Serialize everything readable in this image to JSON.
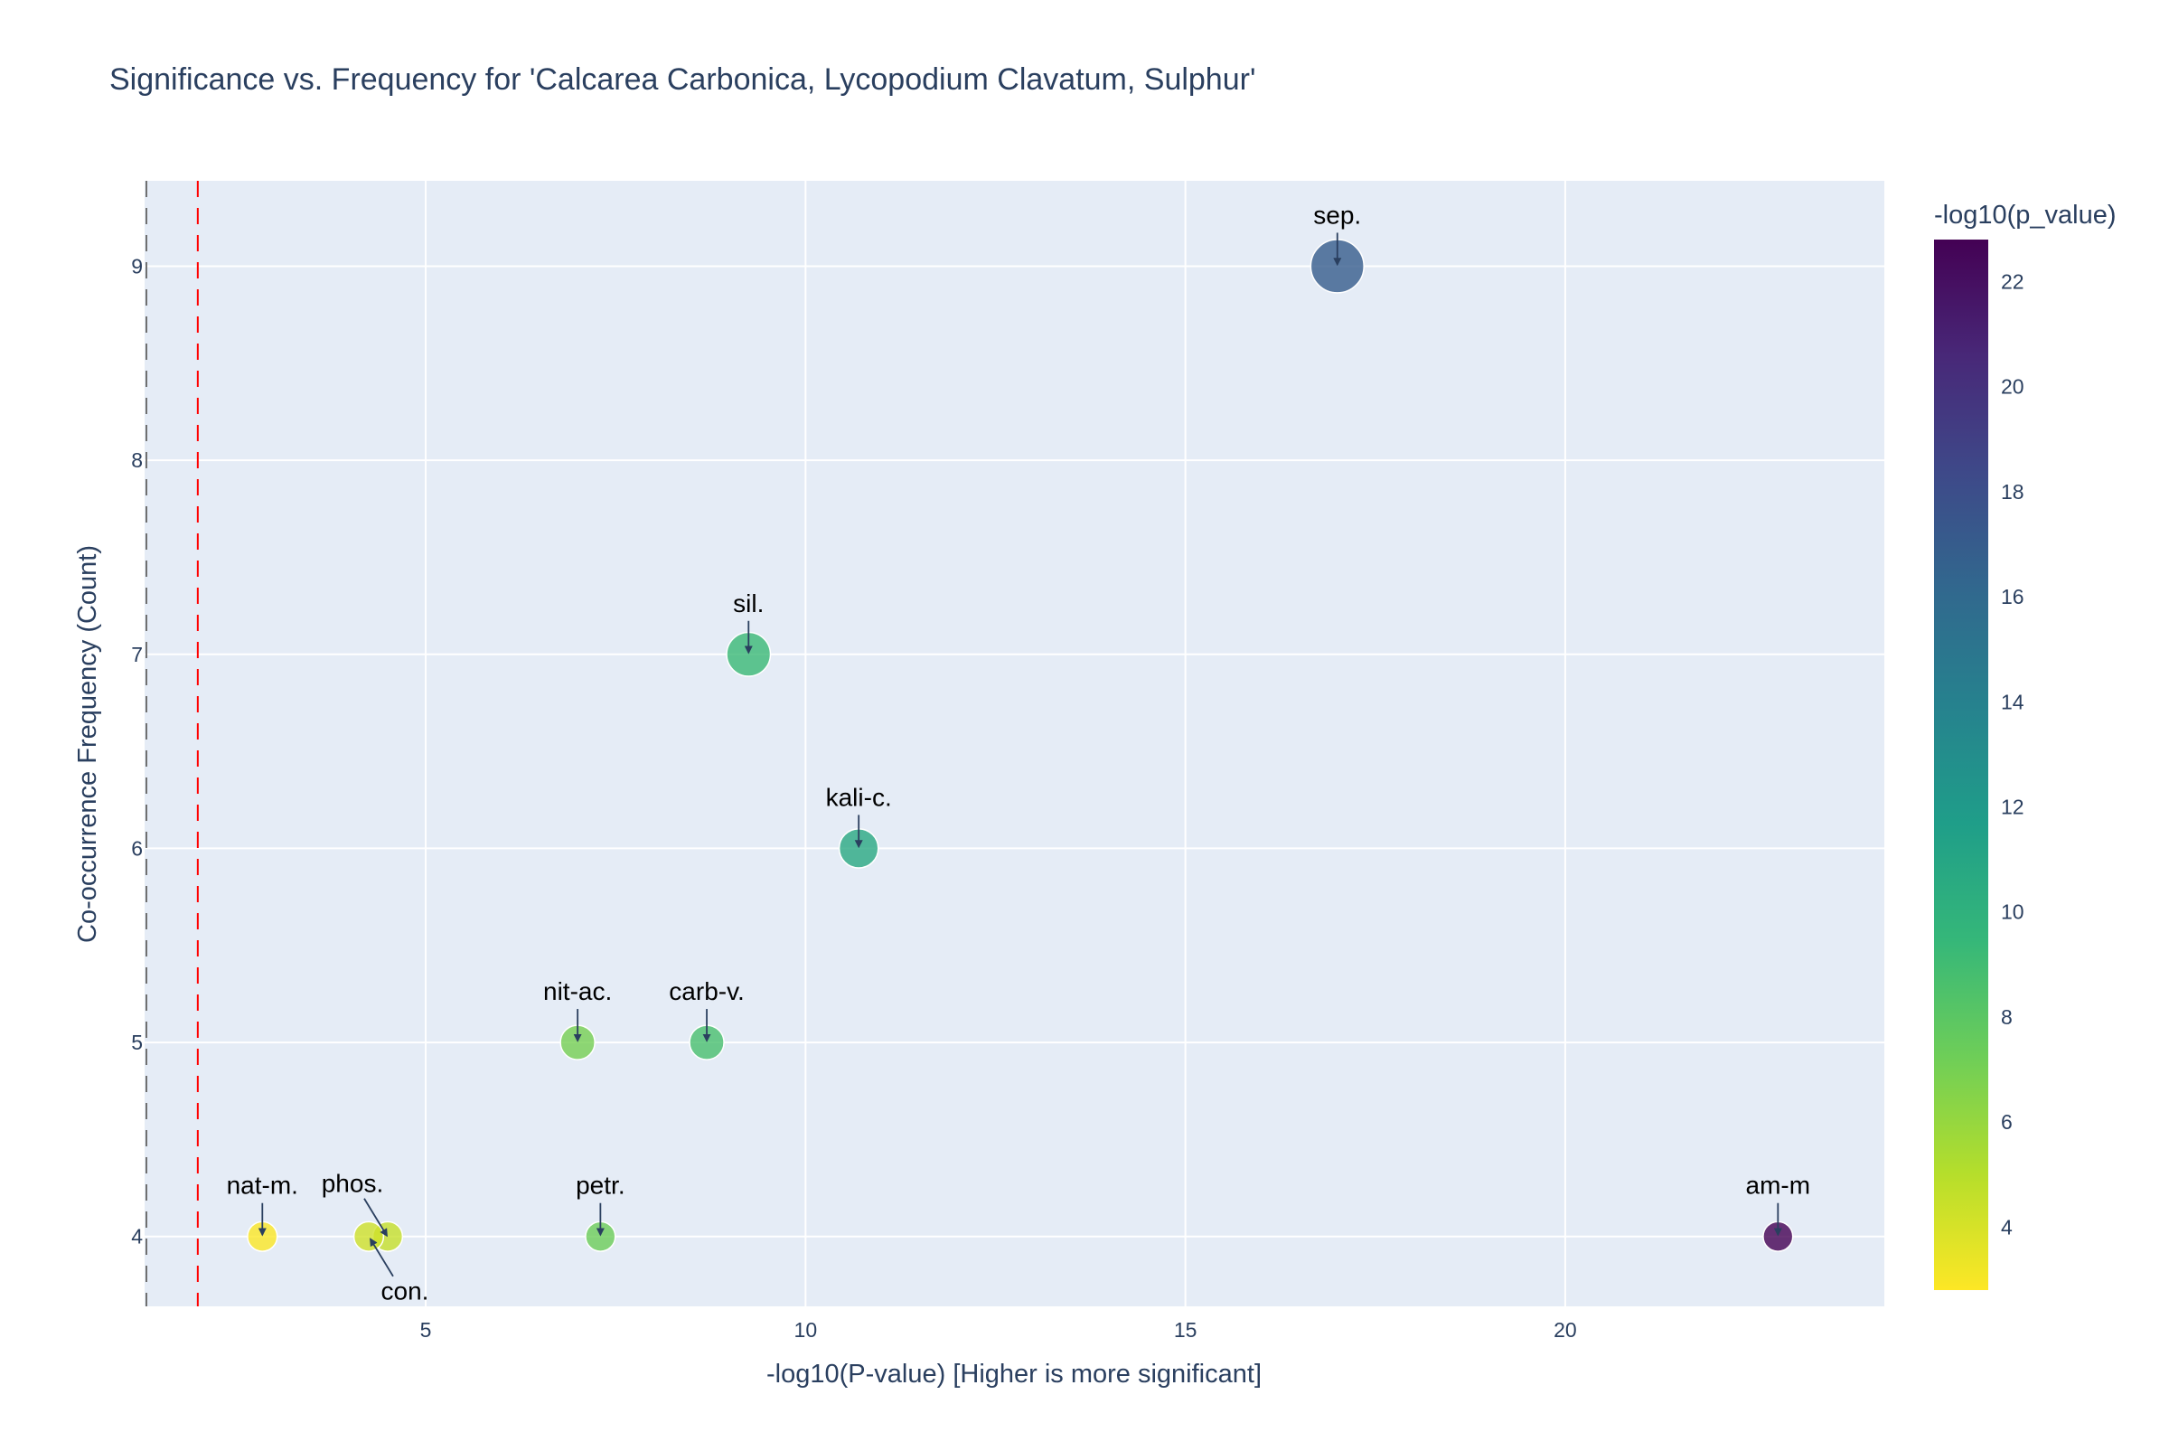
{
  "chart_data": {
    "type": "scatter",
    "title": "Significance vs. Frequency for 'Calcarea Carbonica, Lycopodium Clavatum, Sulphur'",
    "xlabel": "-log10(P-value) [Higher is more significant]",
    "ylabel": "Co-occurrence Frequency (Count)",
    "xlim": [
      1.3,
      24.2
    ],
    "ylim": [
      3.64,
      9.44
    ],
    "x_ticks": [
      5,
      10,
      15,
      20
    ],
    "y_ticks": [
      4,
      5,
      6,
      7,
      8,
      9
    ],
    "grid": true,
    "reference_lines": {
      "red_dashed_x": 2.0,
      "gray_dashed_x": 1.3
    },
    "colorbar": {
      "title": "-log10(p_value)",
      "colorscale": "Viridis (reversed)",
      "range": [
        2.8,
        22.8
      ],
      "ticks": [
        4,
        6,
        8,
        10,
        12,
        14,
        16,
        18,
        20,
        22
      ]
    },
    "points": [
      {
        "label": "sep.",
        "x": 17.0,
        "y": 9,
        "color_value": 17.0
      },
      {
        "label": "sil.",
        "x": 9.25,
        "y": 7,
        "color_value": 9.25
      },
      {
        "label": "kali-c.",
        "x": 10.7,
        "y": 6,
        "color_value": 10.7
      },
      {
        "label": "nit-ac.",
        "x": 7.0,
        "y": 5,
        "color_value": 7.0
      },
      {
        "label": "carb-v.",
        "x": 8.7,
        "y": 5,
        "color_value": 8.7
      },
      {
        "label": "nat-m.",
        "x": 2.85,
        "y": 4,
        "color_value": 2.85
      },
      {
        "label": "phos.",
        "x": 4.5,
        "y": 4,
        "color_value": 4.5
      },
      {
        "label": "con.",
        "x": 4.25,
        "y": 4,
        "color_value": 4.25
      },
      {
        "label": "petr.",
        "x": 7.3,
        "y": 4,
        "color_value": 7.3
      },
      {
        "label": "am-m",
        "x": 22.8,
        "y": 4,
        "color_value": 22.8
      }
    ]
  }
}
